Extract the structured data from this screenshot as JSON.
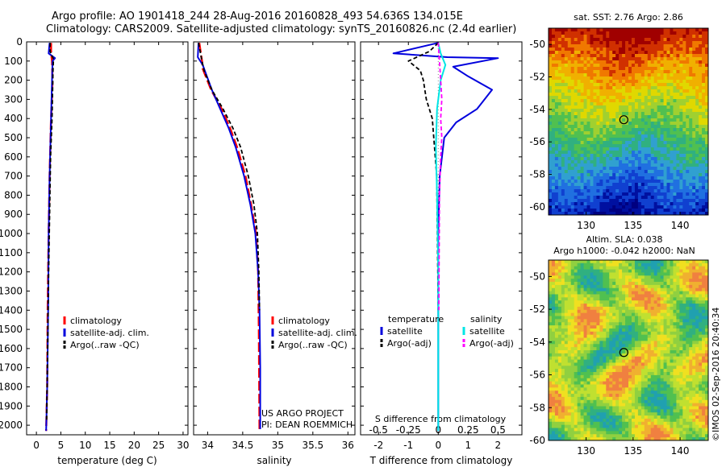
{
  "title": {
    "line1": "Argo profile: AO 1901418_244 28-Aug-2016 20160828_493 54.636S 134.015E",
    "line2": "Climatology: CARS2009. Satellite-adjusted climatology: synTS_20160826.nc (2.4d earlier)"
  },
  "colors": {
    "climatology": "#ff0000",
    "satellite": "#0000dd",
    "argo": "#000000",
    "sal_satellite": "#00e5e5",
    "sal_argo": "#ff00ff"
  },
  "chart_data": [
    {
      "type": "line",
      "xlabel": "temperature (deg C)",
      "ylabel": "",
      "xlim": [
        -2,
        31
      ],
      "ylim": [
        2050,
        0
      ],
      "xticks": [
        "0",
        "5",
        "10",
        "15",
        "20",
        "25",
        "30"
      ],
      "yticks": [
        "0",
        "100",
        "200",
        "300",
        "400",
        "500",
        "600",
        "700",
        "800",
        "900",
        "1000",
        "1100",
        "1200",
        "1300",
        "1400",
        "1500",
        "1600",
        "1700",
        "1800",
        "1900",
        "2000"
      ],
      "legend": {
        "placement": "center-right",
        "entries": [
          "climatology",
          "satellite-adj. clim.",
          "Argo(..raw -QC)"
        ]
      },
      "series": [
        {
          "name": "climatology",
          "x": [
            3.0,
            3.0,
            3.2,
            3.3,
            3.0,
            2.7,
            2.5,
            2.3,
            2.2,
            2.0
          ],
          "y": [
            5,
            50,
            100,
            200,
            400,
            700,
            1000,
            1400,
            1800,
            2030
          ]
        },
        {
          "name": "satellite-adj. clim.",
          "x": [
            2.7,
            2.5,
            3.8,
            3.3,
            3.2,
            3.0,
            2.7,
            2.5,
            2.4,
            2.2,
            2.0
          ],
          "y": [
            5,
            60,
            85,
            100,
            200,
            400,
            700,
            1000,
            1400,
            1800,
            2030
          ]
        },
        {
          "name": "Argo(..raw -QC)",
          "x": [
            2.8,
            2.8,
            3.5,
            3.4,
            3.2,
            2.9,
            2.7,
            2.5,
            2.3,
            2.1
          ],
          "y": [
            5,
            50,
            90,
            150,
            400,
            600,
            900,
            1200,
            1600,
            1980
          ]
        }
      ]
    },
    {
      "type": "line",
      "xlabel": "salinity",
      "ylabel": "",
      "xlim": [
        33.8,
        36.1
      ],
      "ylim": [
        2050,
        0
      ],
      "xticks": [
        "34",
        "34.5",
        "35",
        "35.5",
        "36"
      ],
      "legend": {
        "placement": "center-right",
        "entries": [
          "climatology",
          "satellite-adj. clim.",
          "Argo(..raw -QC)"
        ]
      },
      "annotations": [
        "US ARGO PROJECT",
        "PI: DEAN ROEMMICH"
      ],
      "series": [
        {
          "name": "climatology",
          "x": [
            33.88,
            33.92,
            33.93,
            34.05,
            34.2,
            34.32,
            34.42,
            34.54,
            34.62,
            34.69,
            34.72,
            34.73,
            34.74
          ],
          "y": [
            5,
            100,
            140,
            250,
            350,
            450,
            550,
            700,
            850,
            1000,
            1200,
            1500,
            2020
          ]
        },
        {
          "name": "satellite-adj. clim.",
          "x": [
            33.87,
            33.86,
            33.93,
            34.06,
            34.18,
            34.3,
            34.4,
            34.52,
            34.61,
            34.68,
            34.72,
            34.74,
            34.75,
            34.75
          ],
          "y": [
            5,
            80,
            120,
            250,
            350,
            450,
            550,
            700,
            850,
            1000,
            1200,
            1400,
            1700,
            2020
          ]
        },
        {
          "name": "Argo(..raw -QC)",
          "x": [
            33.87,
            33.92,
            33.95,
            34.06,
            34.22,
            34.36,
            34.47,
            34.58,
            34.66,
            34.71,
            34.73,
            34.74
          ],
          "y": [
            5,
            100,
            150,
            250,
            350,
            450,
            550,
            700,
            850,
            1000,
            1200,
            1400
          ]
        }
      ]
    },
    {
      "type": "line",
      "xlabel": "T difference from climatology",
      "x2label": "S difference from climatology",
      "xlim": [
        -2.6,
        2.8
      ],
      "x2lim": [
        -0.65,
        0.7
      ],
      "ylim": [
        2050,
        0
      ],
      "xticks": [
        "-2",
        "-1",
        "0",
        "1",
        "2"
      ],
      "x2ticks": [
        "-0.5",
        "-0.25",
        "0",
        "0.25",
        "0.5"
      ],
      "legend_temperature": {
        "title": "temperature",
        "entries": [
          "satellite",
          "Argo(-adj)"
        ]
      },
      "legend_salinity": {
        "title": "salinity",
        "entries": [
          "satellite",
          "Argo(-adj)"
        ]
      },
      "series": [
        {
          "name": "satellite",
          "group": "temperature",
          "x": [
            0,
            -1.5,
            0.3,
            2.0,
            0.5,
            1.0,
            1.8,
            1.3,
            0.6,
            0.2,
            0.05,
            0.0,
            0.0
          ],
          "y": [
            5,
            60,
            80,
            85,
            130,
            180,
            250,
            350,
            420,
            500,
            700,
            1000,
            2030
          ]
        },
        {
          "name": "Argo(-adj)",
          "group": "temperature",
          "x": [
            0,
            -0.3,
            -1.0,
            -0.6,
            -0.5,
            -0.4,
            -0.2,
            -0.05,
            0.0
          ],
          "y": [
            5,
            50,
            100,
            150,
            200,
            300,
            400,
            700,
            1400
          ]
        },
        {
          "name": "satellite",
          "group": "salinity",
          "x": [
            0,
            0.02,
            0.06,
            0.02,
            -0.01,
            -0.02,
            -0.01,
            0.0,
            0.0
          ],
          "y": [
            5,
            60,
            120,
            200,
            350,
            550,
            800,
            1200,
            2030
          ]
        },
        {
          "name": "Argo(-adj)",
          "group": "salinity",
          "x": [
            0,
            0.01,
            0.02,
            0.03,
            0.02,
            0.03,
            0.02,
            0.01,
            0.005
          ],
          "y": [
            5,
            100,
            200,
            300,
            400,
            500,
            600,
            800,
            1400
          ]
        }
      ]
    },
    {
      "type": "heatmap",
      "title": "sat. SST: 2.76 Argo: 2.86",
      "xlim": [
        126,
        143
      ],
      "ylim": [
        -60.5,
        -49
      ],
      "xticks": [
        "130",
        "135",
        "140"
      ],
      "yticks": [
        "-50",
        "-52",
        "-54",
        "-56",
        "-58",
        "-60"
      ],
      "marker": {
        "lon": 134.015,
        "lat": -54.636
      }
    },
    {
      "type": "heatmap",
      "title": "Altim. SLA: 0.038",
      "subtitle": "Argo h1000: -0.042 h2000: NaN",
      "xlim": [
        126,
        143
      ],
      "ylim": [
        -60,
        -49
      ],
      "xticks": [
        "130",
        "135",
        "140"
      ],
      "yticks": [
        "-50",
        "-52",
        "-54",
        "-56",
        "-58",
        "-60"
      ],
      "marker": {
        "lon": 134.015,
        "lat": -54.636
      }
    }
  ],
  "footer_stamp": "©IMOS 02-Sep-2016 20:40:34"
}
